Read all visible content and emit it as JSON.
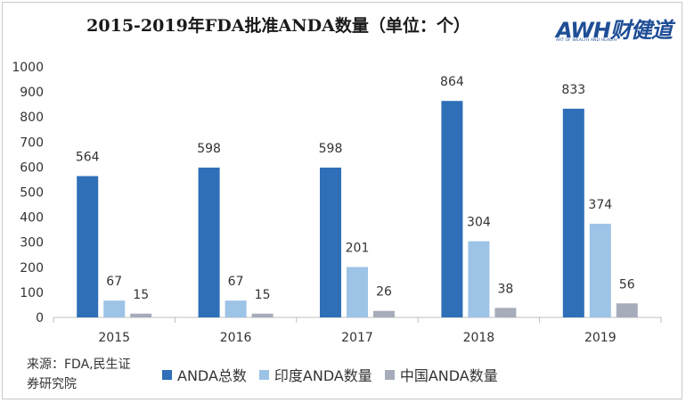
{
  "title": "2015-2019年FDA批准ANDA数量（单位：个）",
  "logo": {
    "main": "AWH财健道",
    "sub": "ART OF WEALTH AND HEALTH"
  },
  "source": "来源：FDA,民生证券研究院",
  "colors": {
    "series": [
      "#2e6fb8",
      "#9dc3e6",
      "#a6acb9"
    ],
    "axis": "#bfbfbf",
    "text": "#333333"
  },
  "chart_data": {
    "type": "bar",
    "title": "2015-2019年FDA批准ANDA数量（单位：个）",
    "categories": [
      "2015",
      "2016",
      "2017",
      "2018",
      "2019"
    ],
    "series": [
      {
        "name": "ANDA总数",
        "values": [
          564,
          598,
          598,
          864,
          833
        ]
      },
      {
        "name": "印度ANDA数量",
        "values": [
          67,
          67,
          201,
          304,
          374
        ]
      },
      {
        "name": "中国ANDA数量",
        "values": [
          15,
          15,
          26,
          38,
          56
        ]
      }
    ],
    "yticks": [
      0,
      100,
      200,
      300,
      400,
      500,
      600,
      700,
      800,
      900,
      1000
    ],
    "ylim": [
      0,
      1000
    ],
    "xlabel": "",
    "ylabel": "",
    "grid": false,
    "legend": "bottom"
  }
}
